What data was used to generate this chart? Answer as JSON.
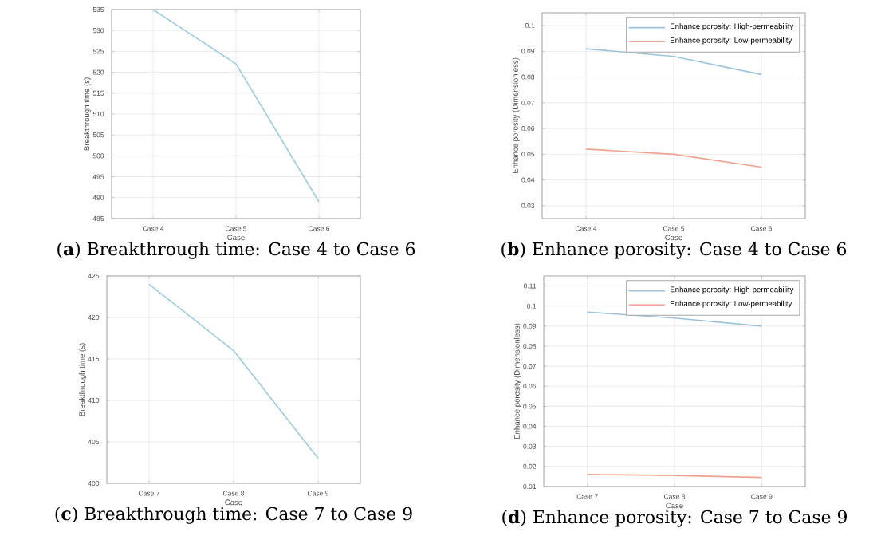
{
  "chart_data": [
    {
      "type": "line",
      "title": "(**a**) Breakthrough time: Case 4 to Case 6",
      "xlabel": "Case",
      "ylabel": "Breakthrough time (s)",
      "categories": [
        "Case 4",
        "Case 5",
        "Case 6"
      ],
      "ylim": [
        485,
        535
      ],
      "yticks": [
        485,
        490,
        495,
        500,
        505,
        510,
        515,
        520,
        525,
        530,
        535
      ],
      "grid": true,
      "series": [
        {
          "color": "#9ccbdc",
          "values": [
            535,
            522,
            489
          ]
        }
      ]
    },
    {
      "type": "line",
      "title": "(**b**) Enhance porosity: Case 4 to Case 6",
      "xlabel": "Case",
      "ylabel": "Enhance porosity (Dimensionless)",
      "categories": [
        "Case 4",
        "Case 5",
        "Case 6"
      ],
      "ylim": [
        0.025,
        0.105
      ],
      "yticks": [
        0.03,
        0.04,
        0.05,
        0.06,
        0.07,
        0.08,
        0.09,
        0.1
      ],
      "grid": true,
      "legend": "top right",
      "series": [
        {
          "name": "Enhance porosity: High-permeability",
          "color": "#9cc3d9",
          "values": [
            0.091,
            0.088,
            0.081
          ]
        },
        {
          "name": "Enhance porosity: Low-permeability",
          "color": "#f0a290",
          "values": [
            0.052,
            0.05,
            0.045
          ]
        }
      ]
    },
    {
      "type": "line",
      "title": "(**c**) Breakthrough time: Case 7 to Case 9",
      "xlabel": "Case",
      "ylabel": "Breakthrough time (s)",
      "categories": [
        "Case 7",
        "Case 8",
        "Case 9"
      ],
      "ylim": [
        400,
        425
      ],
      "yticks": [
        400,
        405,
        410,
        415,
        420,
        425
      ],
      "grid": true,
      "series": [
        {
          "color": "#9ccbdc",
          "values": [
            424,
            416,
            403
          ]
        }
      ]
    },
    {
      "type": "line",
      "title": "(**d**) Enhance porosity: Case 7 to Case 9",
      "xlabel": "Case",
      "ylabel": "Enhance porosity (Dimensionless)",
      "categories": [
        "Case 7",
        "Case 8",
        "Case 9"
      ],
      "ylim": [
        0.01,
        0.115
      ],
      "yticks": [
        0.01,
        0.02,
        0.03,
        0.04,
        0.05,
        0.06,
        0.07,
        0.08,
        0.09,
        0.1,
        0.11
      ],
      "grid": true,
      "legend": "top right",
      "series": [
        {
          "name": "Enhance porosity: High-permeability",
          "color": "#9cc3d9",
          "values": [
            0.097,
            0.094,
            0.09
          ]
        },
        {
          "name": "Enhance porosity: Low-permeability",
          "color": "#f0a290",
          "values": [
            0.016,
            0.0155,
            0.0145
          ]
        }
      ]
    }
  ]
}
